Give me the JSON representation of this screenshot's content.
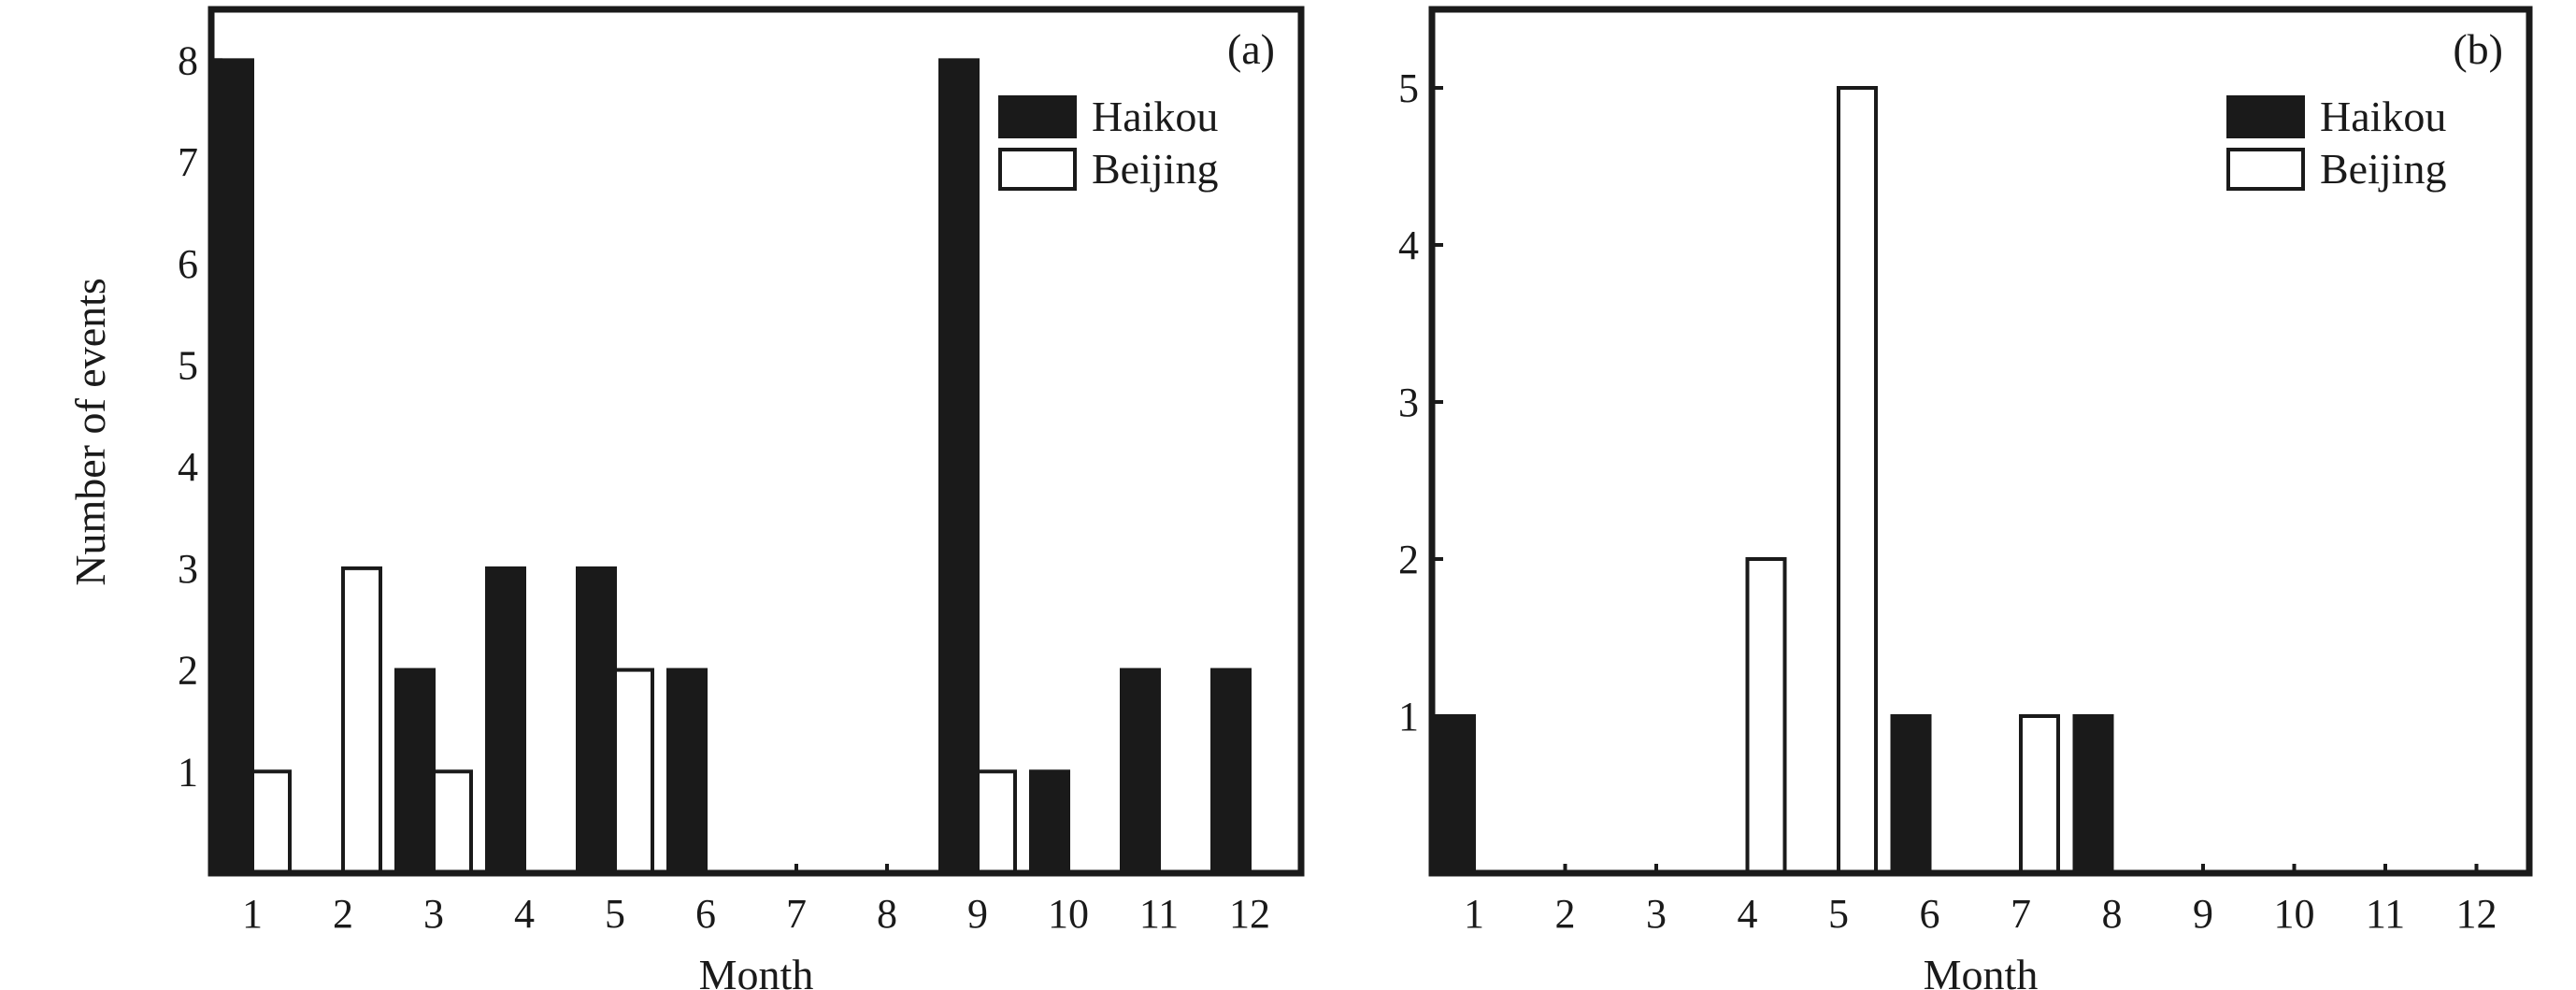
{
  "colors": {
    "ink": "#1a1a1a",
    "haikou": "#1a1a1a",
    "beijing": "#ffffff"
  },
  "chart_data": [
    {
      "type": "bar",
      "panel_label": "(a)",
      "categories": [
        "1",
        "2",
        "3",
        "4",
        "5",
        "6",
        "7",
        "8",
        "9",
        "10",
        "11",
        "12"
      ],
      "series": [
        {
          "name": "Haikou",
          "values": [
            8,
            0,
            2,
            3,
            3,
            2,
            0,
            0,
            8,
            1,
            2,
            2
          ]
        },
        {
          "name": "Beijing",
          "values": [
            1,
            3,
            1,
            0,
            2,
            0,
            0,
            0,
            1,
            0,
            0,
            0
          ]
        }
      ],
      "xlabel": "Month",
      "ylabel": "Number of events",
      "ylim": [
        0,
        8.5
      ],
      "yticks": [
        1,
        2,
        3,
        4,
        5,
        6,
        7,
        8
      ],
      "legend_position": "top-right",
      "grid": false
    },
    {
      "type": "bar",
      "panel_label": "(b)",
      "categories": [
        "1",
        "2",
        "3",
        "4",
        "5",
        "6",
        "7",
        "8",
        "9",
        "10",
        "11",
        "12"
      ],
      "series": [
        {
          "name": "Haikou",
          "values": [
            1,
            0,
            0,
            0,
            0,
            1,
            0,
            1,
            0,
            0,
            0,
            0
          ]
        },
        {
          "name": "Beijing",
          "values": [
            0,
            0,
            0,
            2,
            5,
            0,
            1,
            0,
            0,
            0,
            0,
            0
          ]
        }
      ],
      "xlabel": "Month",
      "ylabel": "",
      "ylim": [
        0,
        5.5
      ],
      "yticks": [
        1,
        2,
        3,
        4,
        5
      ],
      "legend_position": "top-right",
      "grid": false
    }
  ]
}
